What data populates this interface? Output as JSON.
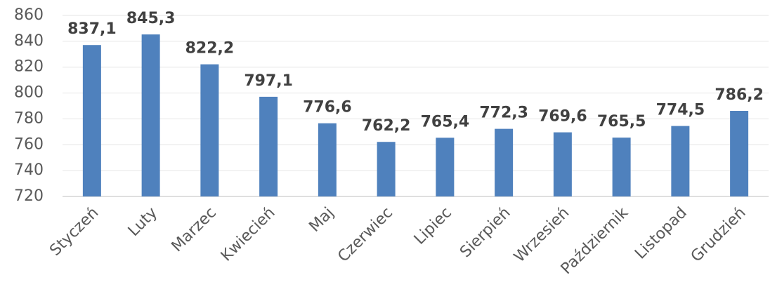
{
  "chart_data": {
    "type": "bar",
    "categories": [
      "Styczeń",
      "Luty",
      "Marzec",
      "Kwiecień",
      "Maj",
      "Czerwiec",
      "Lipiec",
      "Sierpień",
      "Wrzesień",
      "Październik",
      "Listopad",
      "Grudzień"
    ],
    "values": [
      837.1,
      845.3,
      822.2,
      797.1,
      776.6,
      762.2,
      765.4,
      772.3,
      769.6,
      765.5,
      774.5,
      786.2
    ],
    "value_labels": [
      "837,1",
      "845,3",
      "822,2",
      "797,1",
      "776,6",
      "762,2",
      "765,4",
      "772,3",
      "769,6",
      "765,5",
      "774,5",
      "786,2"
    ],
    "color": "#4f81bd",
    "ylim": [
      720,
      860
    ],
    "yticks": [
      720,
      740,
      760,
      780,
      800,
      820,
      840,
      860
    ],
    "grid": true
  }
}
